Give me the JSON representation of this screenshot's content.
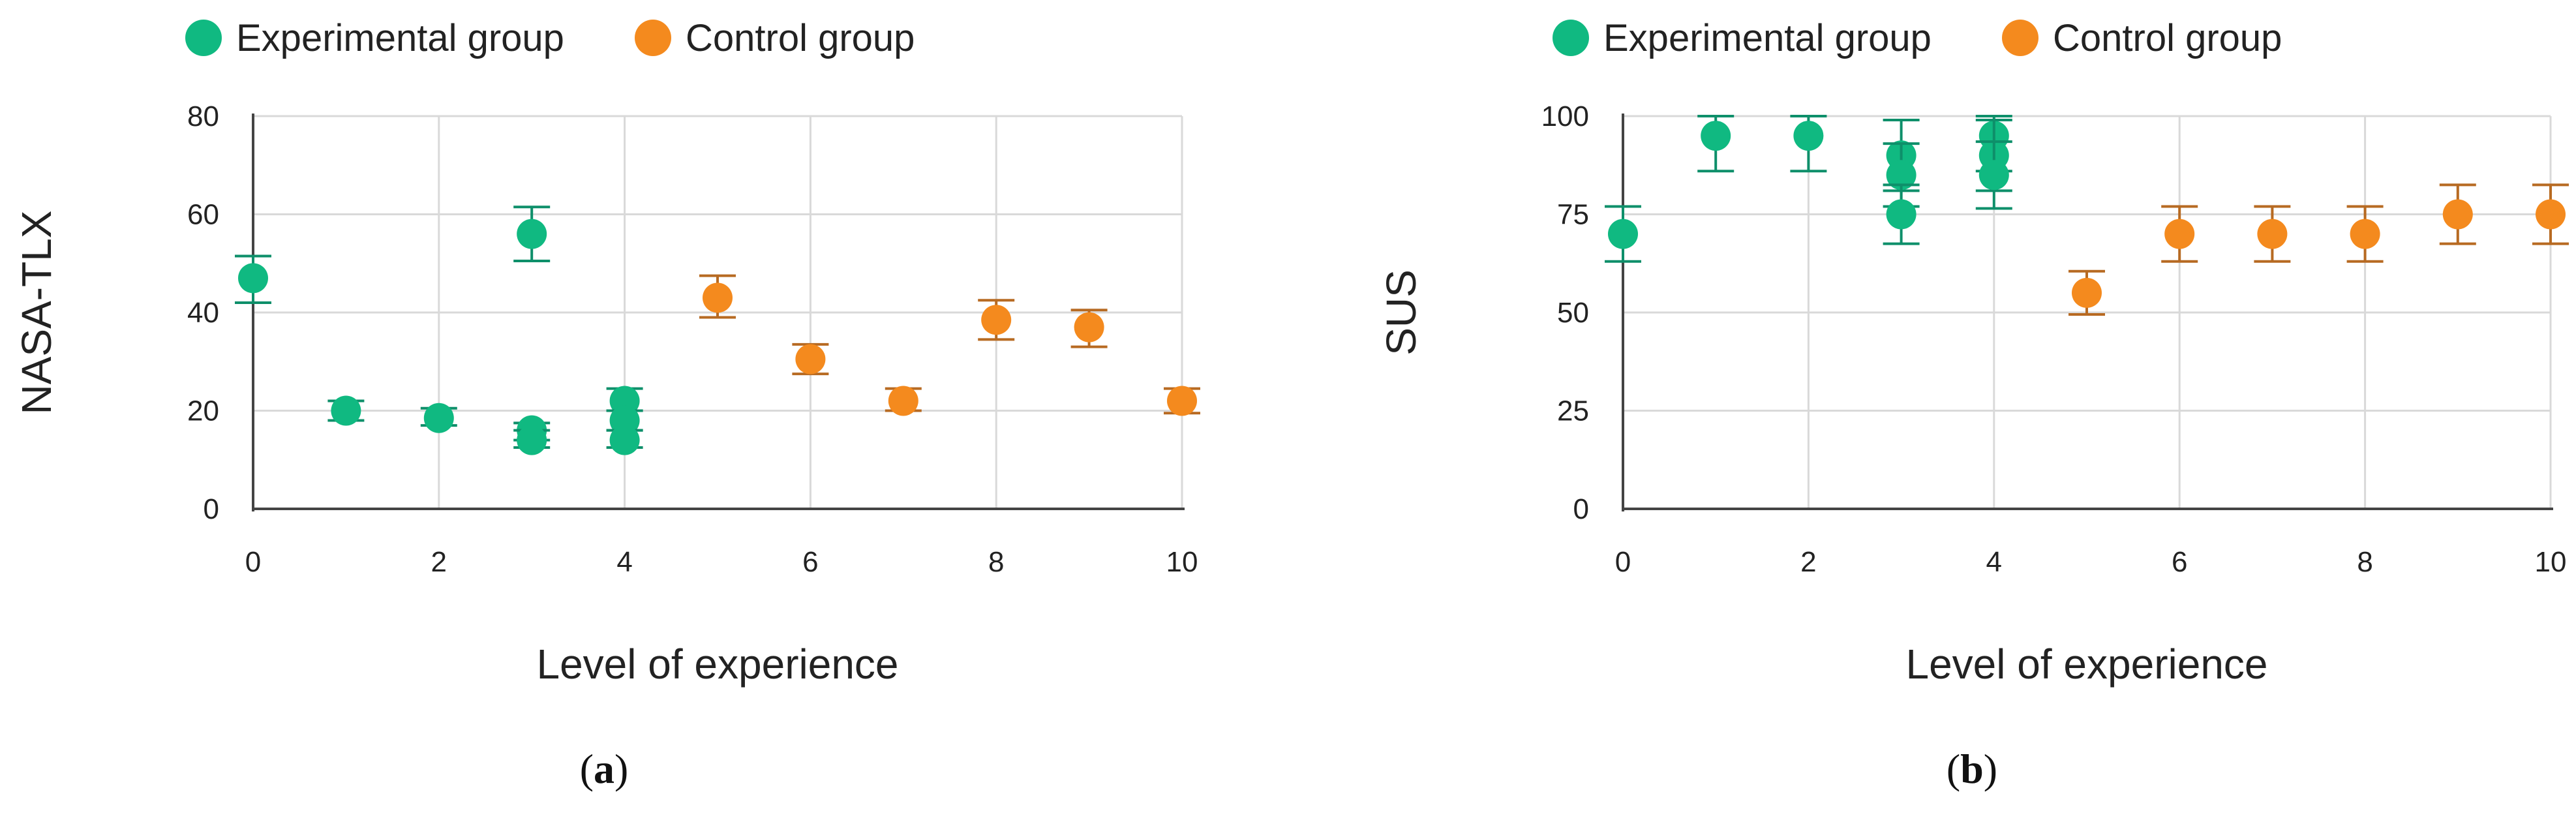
{
  "colors": {
    "experimental": "#10b981",
    "experimental_error": "#0e8f6a",
    "control": "#f48a1e",
    "control_error": "#b76a22",
    "grid": "#d9d9d9",
    "axis": "#444444"
  },
  "chart_data": [
    {
      "type": "scatter",
      "panel_label": "a",
      "title": "",
      "xlabel": "Level of experience",
      "ylabel": "NASA-TLX",
      "xlim": [
        0,
        10
      ],
      "ylim": [
        0,
        80
      ],
      "xticks": [
        0,
        2,
        4,
        6,
        8,
        10
      ],
      "yticks": [
        0,
        20,
        40,
        60,
        80
      ],
      "grid": true,
      "legend_position": "top-left",
      "series": [
        {
          "name": "Experimental group",
          "color": "#10b981",
          "points": [
            {
              "x": 0,
              "y": 47,
              "err_low": 42,
              "err_high": 51.5
            },
            {
              "x": 1,
              "y": 20,
              "err_low": 18,
              "err_high": 22
            },
            {
              "x": 2,
              "y": 18.5,
              "err_low": 17,
              "err_high": 20.5
            },
            {
              "x": 3,
              "y": 56,
              "err_low": 50.5,
              "err_high": 61.5
            },
            {
              "x": 3,
              "y": 16,
              "err_low": 14,
              "err_high": 17.5
            },
            {
              "x": 3,
              "y": 14,
              "err_low": 12.5,
              "err_high": 16
            },
            {
              "x": 4,
              "y": 22,
              "err_low": 20,
              "err_high": 24.5
            },
            {
              "x": 4,
              "y": 18,
              "err_low": 16,
              "err_high": 20
            },
            {
              "x": 4,
              "y": 14,
              "err_low": 12.5,
              "err_high": 16
            }
          ]
        },
        {
          "name": "Control group",
          "color": "#f48a1e",
          "points": [
            {
              "x": 5,
              "y": 43,
              "err_low": 39,
              "err_high": 47.5
            },
            {
              "x": 6,
              "y": 30.5,
              "err_low": 27.5,
              "err_high": 33.5
            },
            {
              "x": 7,
              "y": 22,
              "err_low": 20,
              "err_high": 24.5
            },
            {
              "x": 8,
              "y": 38.5,
              "err_low": 34.5,
              "err_high": 42.5
            },
            {
              "x": 9,
              "y": 37,
              "err_low": 33,
              "err_high": 40.5
            },
            {
              "x": 10,
              "y": 22,
              "err_low": 19.5,
              "err_high": 24.5
            }
          ]
        }
      ]
    },
    {
      "type": "scatter",
      "panel_label": "b",
      "title": "",
      "xlabel": "Level of experience",
      "ylabel": "SUS",
      "xlim": [
        0,
        10
      ],
      "ylim": [
        0,
        100
      ],
      "xticks": [
        0,
        2,
        4,
        6,
        8,
        10
      ],
      "yticks": [
        0,
        25,
        50,
        75,
        100
      ],
      "grid": true,
      "legend_position": "top-left",
      "series": [
        {
          "name": "Experimental group",
          "color": "#10b981",
          "points": [
            {
              "x": 0,
              "y": 70,
              "err_low": 63,
              "err_high": 77
            },
            {
              "x": 1,
              "y": 95,
              "err_low": 86,
              "err_high": 100
            },
            {
              "x": 2,
              "y": 95,
              "err_low": 86,
              "err_high": 100
            },
            {
              "x": 3,
              "y": 90,
              "err_low": 81,
              "err_high": 99
            },
            {
              "x": 3,
              "y": 85,
              "err_low": 77,
              "err_high": 93
            },
            {
              "x": 3,
              "y": 75,
              "err_low": 67.5,
              "err_high": 82.5
            },
            {
              "x": 4,
              "y": 95,
              "err_low": 86,
              "err_high": 100
            },
            {
              "x": 4,
              "y": 90,
              "err_low": 81,
              "err_high": 99
            },
            {
              "x": 4,
              "y": 85,
              "err_low": 76.5,
              "err_high": 93.5
            }
          ]
        },
        {
          "name": "Control group",
          "color": "#f48a1e",
          "points": [
            {
              "x": 5,
              "y": 55,
              "err_low": 49.5,
              "err_high": 60.5
            },
            {
              "x": 6,
              "y": 70,
              "err_low": 63,
              "err_high": 77
            },
            {
              "x": 7,
              "y": 70,
              "err_low": 63,
              "err_high": 77
            },
            {
              "x": 8,
              "y": 70,
              "err_low": 63,
              "err_high": 77
            },
            {
              "x": 9,
              "y": 75,
              "err_low": 67.5,
              "err_high": 82.5
            },
            {
              "x": 10,
              "y": 75,
              "err_low": 67.5,
              "err_high": 82.5
            }
          ]
        }
      ]
    }
  ]
}
